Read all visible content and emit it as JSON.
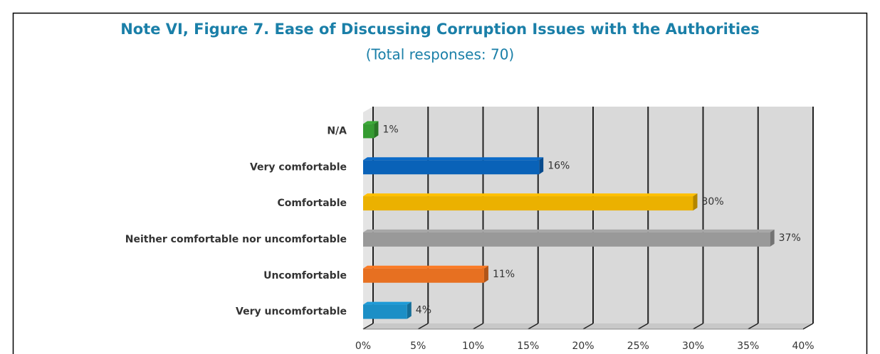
{
  "chart_data": {
    "type": "bar",
    "orientation": "horizontal",
    "title": "Note VI, Figure 7. Ease of Discussing Corruption Issues with the Authorities",
    "subtitle": "(Total responses: 70)",
    "categories": [
      "N/A",
      "Very comfortable",
      "Comfortable",
      "Neither comfortable nor uncomfortable",
      "Uncomfortable",
      "Very uncomfortable"
    ],
    "values": [
      1,
      16,
      30,
      37,
      11,
      4
    ],
    "value_labels": [
      "1%",
      "16%",
      "30%",
      "37%",
      "11%",
      "4%"
    ],
    "colors": [
      "#3aa935",
      "#0a6ac8",
      "#ffc000",
      "#a6a6a6",
      "#fb7a24",
      "#1e9bd7"
    ],
    "xlim": [
      0,
      40
    ],
    "xticks": [
      {
        "value": 0,
        "label": "0%"
      },
      {
        "value": 5,
        "label": "5%"
      },
      {
        "value": 10,
        "label": "10%"
      },
      {
        "value": 15,
        "label": "15%"
      },
      {
        "value": 20,
        "label": "20%"
      },
      {
        "value": 25,
        "label": "25%"
      },
      {
        "value": 30,
        "label": "30%"
      },
      {
        "value": 35,
        "label": "35%"
      },
      {
        "value": 40,
        "label": "40%"
      }
    ],
    "grid": true
  }
}
